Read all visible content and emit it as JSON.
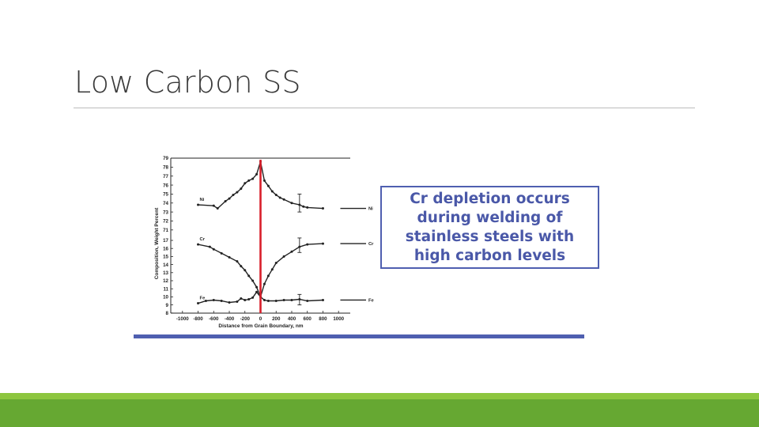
{
  "slide": {
    "title": "Low Carbon SS",
    "callout": "Cr depletion occurs during welding of stainless steels with high carbon levels"
  },
  "colors": {
    "accent_blue": "#4f5fb0",
    "marker_red": "#d81e2a",
    "footer_light": "#8dc63f",
    "footer_dark": "#66a832"
  },
  "chart_data": {
    "type": "line",
    "xlabel": "Distance from Grain Boundary, nm",
    "ylabel": "Composition, Weight Percent",
    "xlim": [
      -1150,
      1150
    ],
    "ylim": [
      8,
      79
    ],
    "x_ticks": [
      -1000,
      -800,
      -600,
      -400,
      -200,
      0,
      200,
      400,
      600,
      800,
      1000
    ],
    "x_tick_labels": [
      "-1000",
      "-800",
      "-600",
      "-400",
      "-200",
      "0",
      "200",
      "400",
      "600",
      "800",
      "1000"
    ],
    "y_ticks": [
      8,
      9,
      10,
      11,
      12,
      13,
      14,
      15,
      16,
      17,
      71,
      72,
      73,
      74,
      75,
      76,
      77,
      78,
      79
    ],
    "grid": false,
    "vertical_marker_x": 0,
    "series": [
      {
        "name": "Ni",
        "x": [
          -800,
          -600,
          -550,
          -450,
          -400,
          -350,
          -300,
          -250,
          -200,
          -150,
          -100,
          -50,
          0,
          50,
          100,
          150,
          200,
          250,
          300,
          400,
          500,
          550,
          600,
          800
        ],
        "y": [
          73.8,
          73.7,
          73.4,
          74.2,
          74.5,
          74.9,
          75.2,
          75.6,
          76.2,
          76.5,
          76.7,
          77.2,
          78.6,
          76.5,
          75.9,
          75.3,
          74.9,
          74.6,
          74.4,
          74.0,
          73.8,
          73.6,
          73.5,
          73.4
        ]
      },
      {
        "name": "Cr",
        "x": [
          -800,
          -650,
          -600,
          -500,
          -400,
          -300,
          -250,
          -200,
          -150,
          -100,
          -50,
          0,
          50,
          100,
          150,
          200,
          300,
          400,
          500,
          600,
          800
        ],
        "y": [
          16.5,
          16.2,
          15.9,
          15.4,
          14.9,
          14.4,
          13.8,
          13.3,
          12.6,
          12.0,
          11.2,
          10.0,
          11.6,
          12.6,
          13.4,
          14.2,
          15.0,
          15.6,
          16.2,
          16.5,
          16.6
        ]
      },
      {
        "name": "Fe",
        "x": [
          -800,
          -700,
          -600,
          -500,
          -400,
          -300,
          -250,
          -200,
          -150,
          -100,
          -50,
          0,
          50,
          100,
          200,
          300,
          400,
          500,
          600,
          800
        ],
        "y": [
          9.2,
          9.5,
          9.6,
          9.5,
          9.3,
          9.4,
          9.8,
          9.6,
          9.7,
          9.9,
          10.6,
          10.0,
          9.6,
          9.5,
          9.5,
          9.6,
          9.6,
          9.7,
          9.5,
          9.6
        ]
      }
    ],
    "error_bars": [
      {
        "series": "Ni",
        "x": 500,
        "y": 74.0,
        "low": 73.0,
        "high": 75.0
      },
      {
        "series": "Cr",
        "x": 500,
        "y": 16.4,
        "low": 15.5,
        "high": 17.3
      },
      {
        "series": "Fe",
        "x": 500,
        "y": 9.6,
        "low": 9.0,
        "high": 10.3
      }
    ]
  }
}
